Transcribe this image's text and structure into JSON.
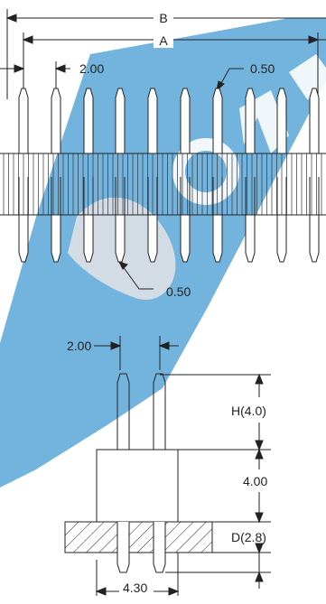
{
  "top_view": {
    "dim_b": "B",
    "dim_a": "A",
    "pitch": "2.00",
    "pin_width_top": "0.50",
    "pin_width_bottom": "0.50"
  },
  "side_view": {
    "pitch": "2.00",
    "h": "H(4.0)",
    "body_height": "4.00",
    "d": "D(2.8)",
    "overall_width": "4.30"
  },
  "colors": {
    "line": "#222222",
    "watermark": "#5aa7d8"
  }
}
